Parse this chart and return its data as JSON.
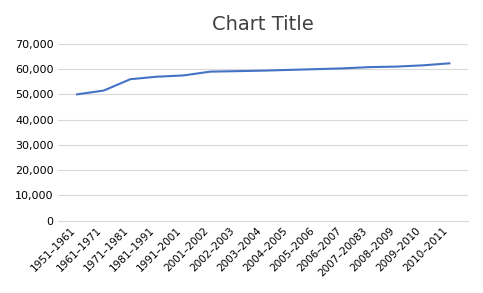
{
  "title": "Chart Title",
  "categories": [
    "1951–1961",
    "1961–1971",
    "1971–1981",
    "1981–1991",
    "1991–2001",
    "2001–2002",
    "2002–2003",
    "2003–2004",
    "2004–2005",
    "2005–2006",
    "2006–2007",
    "2007–20083",
    "2008–2009",
    "2009–2010",
    "2010–2011"
  ],
  "values": [
    50000,
    51500,
    56000,
    57000,
    57500,
    59000,
    59200,
    59400,
    59700,
    60000,
    60300,
    60800,
    61000,
    61500,
    62300
  ],
  "line_color": "#4472C4",
  "line_width": 1.5,
  "background_color": "#ffffff",
  "plot_background": "#ffffff",
  "grid_color": "#d9d9d9",
  "ylim": [
    0,
    70000
  ],
  "yticks": [
    0,
    10000,
    20000,
    30000,
    40000,
    50000,
    60000,
    70000
  ],
  "title_fontsize": 14,
  "tick_fontsize": 7.5,
  "ytick_fontsize": 8
}
